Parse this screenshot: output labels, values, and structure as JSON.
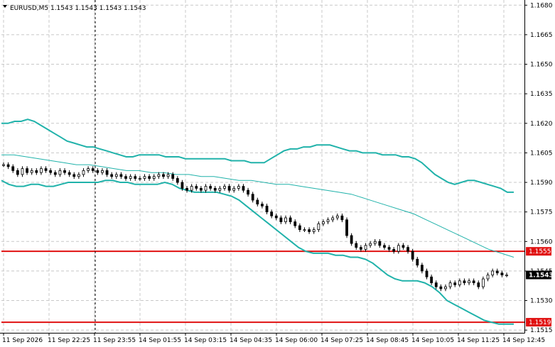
{
  "colors": {
    "background": "#ffffff",
    "grid": "#c8c8c8",
    "candle": "#000000",
    "bollinger": "#20b2aa",
    "moving_average": "#20b2aa",
    "horizontal_line": "#e01010",
    "current_price_label": "#000000"
  },
  "chart_data": {
    "type": "candlestick",
    "title": "EURUSD,M5  1.1543 1.1543 1.1543 1.1543",
    "symbol": "EURUSD,M5",
    "ohlc_header": [
      "1.1543",
      "1.1543",
      "1.1543",
      "1.1543"
    ],
    "y_axis": {
      "range": [
        1.1512,
        1.1681
      ],
      "ticks": [
        1.168,
        1.1665,
        1.165,
        1.1635,
        1.162,
        1.1605,
        1.159,
        1.1575,
        1.156,
        1.1545,
        1.153,
        1.1515
      ],
      "tick_labels": [
        "1.1680",
        "1.1665",
        "1.1650",
        "1.1635",
        "1.1620",
        "1.1605",
        "1.1590",
        "1.1575",
        "1.1560",
        "1.1545",
        "1.1530",
        "1.1515"
      ]
    },
    "x_axis": {
      "labels": [
        "11 Sep 2026",
        "11 Sep 22:25",
        "11 Sep 23:55",
        "14 Sep 01:55",
        "14 Sep 03:15",
        "14 Sep 04:35",
        "14 Sep 06:00",
        "14 Sep 07:25",
        "14 Sep 08:45",
        "14 Sep 10:05",
        "14 Sep 11:25",
        "14 Sep 12:45"
      ]
    },
    "grid": true,
    "vertical_cursor_label": "11 Sep 23:55",
    "horizontal_lines": [
      {
        "price": 1.1555,
        "label": "1.1555"
      },
      {
        "price": 1.1519,
        "label": "1.1519"
      }
    ],
    "current_price": {
      "price": 1.1543,
      "label": "1.1543"
    },
    "closes": [
      1.1599,
      1.1598,
      1.1596,
      1.1594,
      1.1597,
      1.1595,
      1.1596,
      1.1595,
      1.1597,
      1.1596,
      1.1595,
      1.1594,
      1.1596,
      1.1595,
      1.1594,
      1.1593,
      1.1594,
      1.1596,
      1.1597,
      1.1596,
      1.1595,
      1.1596,
      1.1594,
      1.1593,
      1.1594,
      1.1593,
      1.1592,
      1.1593,
      1.1592,
      1.1592,
      1.1593,
      1.1592,
      1.1593,
      1.1594,
      1.1593,
      1.1594,
      1.1592,
      1.159,
      1.1587,
      1.1586,
      1.1588,
      1.1587,
      1.1586,
      1.1588,
      1.1587,
      1.1586,
      1.1587,
      1.1588,
      1.1586,
      1.1587,
      1.1588,
      1.1586,
      1.1584,
      1.1581,
      1.1579,
      1.1578,
      1.1575,
      1.1573,
      1.1572,
      1.157,
      1.1572,
      1.157,
      1.1568,
      1.1566,
      1.1566,
      1.1565,
      1.1566,
      1.1569,
      1.157,
      1.1571,
      1.1572,
      1.1573,
      1.1571,
      1.1563,
      1.1559,
      1.1557,
      1.1556,
      1.1558,
      1.1559,
      1.156,
      1.1558,
      1.1557,
      1.1556,
      1.1555,
      1.1558,
      1.1557,
      1.1555,
      1.1551,
      1.1548,
      1.1545,
      1.1542,
      1.1539,
      1.1537,
      1.1536,
      1.1537,
      1.1539,
      1.1538,
      1.154,
      1.1539,
      1.154,
      1.1539,
      1.1537,
      1.1541,
      1.1543,
      1.1545,
      1.1544,
      1.1543,
      1.1543
    ],
    "bollinger_upper": [
      1.162,
      1.162,
      1.1621,
      1.1621,
      1.1622,
      1.1621,
      1.1619,
      1.1617,
      1.1615,
      1.1613,
      1.1611,
      1.161,
      1.1609,
      1.1608,
      1.1608,
      1.1607,
      1.1606,
      1.1605,
      1.1604,
      1.1603,
      1.1603,
      1.1604,
      1.1604,
      1.1604,
      1.1604,
      1.1603,
      1.1603,
      1.1603,
      1.1602,
      1.1602,
      1.1602,
      1.1602,
      1.1602,
      1.1602,
      1.1602,
      1.1601,
      1.1601,
      1.1601,
      1.16,
      1.16,
      1.16,
      1.1602,
      1.1604,
      1.1606,
      1.1607,
      1.1607,
      1.1608,
      1.1608,
      1.1609,
      1.1609,
      1.1609,
      1.1608,
      1.1607,
      1.1606,
      1.1606,
      1.1605,
      1.1605,
      1.1605,
      1.1604,
      1.1604,
      1.1604,
      1.1603,
      1.1603,
      1.1602,
      1.16,
      1.1597,
      1.1594,
      1.1592,
      1.159,
      1.1589,
      1.159,
      1.1591,
      1.1591,
      1.159,
      1.1589,
      1.1588,
      1.1587,
      1.1585,
      1.1585
    ],
    "bollinger_lower": [
      1.1591,
      1.1589,
      1.1588,
      1.1588,
      1.1589,
      1.1589,
      1.1588,
      1.1588,
      1.1589,
      1.159,
      1.159,
      1.159,
      1.159,
      1.159,
      1.1591,
      1.1591,
      1.159,
      1.159,
      1.1589,
      1.1589,
      1.1589,
      1.1589,
      1.159,
      1.1589,
      1.1587,
      1.1586,
      1.1585,
      1.1585,
      1.1585,
      1.1585,
      1.1584,
      1.1583,
      1.1581,
      1.1578,
      1.1575,
      1.1572,
      1.1569,
      1.1566,
      1.1563,
      1.156,
      1.1557,
      1.1555,
      1.1554,
      1.1554,
      1.1554,
      1.1553,
      1.1553,
      1.1552,
      1.1552,
      1.1551,
      1.1549,
      1.1546,
      1.1543,
      1.1541,
      1.154,
      1.154,
      1.154,
      1.1539,
      1.1537,
      1.1534,
      1.153,
      1.1528,
      1.1526,
      1.1524,
      1.1522,
      1.152,
      1.1519,
      1.1518,
      1.1518,
      1.1518
    ],
    "moving_average": [
      1.1604,
      1.1604,
      1.1603,
      1.1602,
      1.1601,
      1.16,
      1.1599,
      1.1599,
      1.1598,
      1.1597,
      1.1596,
      1.1596,
      1.1595,
      1.1595,
      1.1594,
      1.1594,
      1.1593,
      1.1593,
      1.1592,
      1.1591,
      1.1591,
      1.159,
      1.1589,
      1.1589,
      1.1588,
      1.1587,
      1.1586,
      1.1585,
      1.1584,
      1.1582,
      1.158,
      1.1578,
      1.1576,
      1.1574,
      1.1571,
      1.1568,
      1.1565,
      1.1562,
      1.1559,
      1.1556,
      1.1554,
      1.1552
    ]
  }
}
